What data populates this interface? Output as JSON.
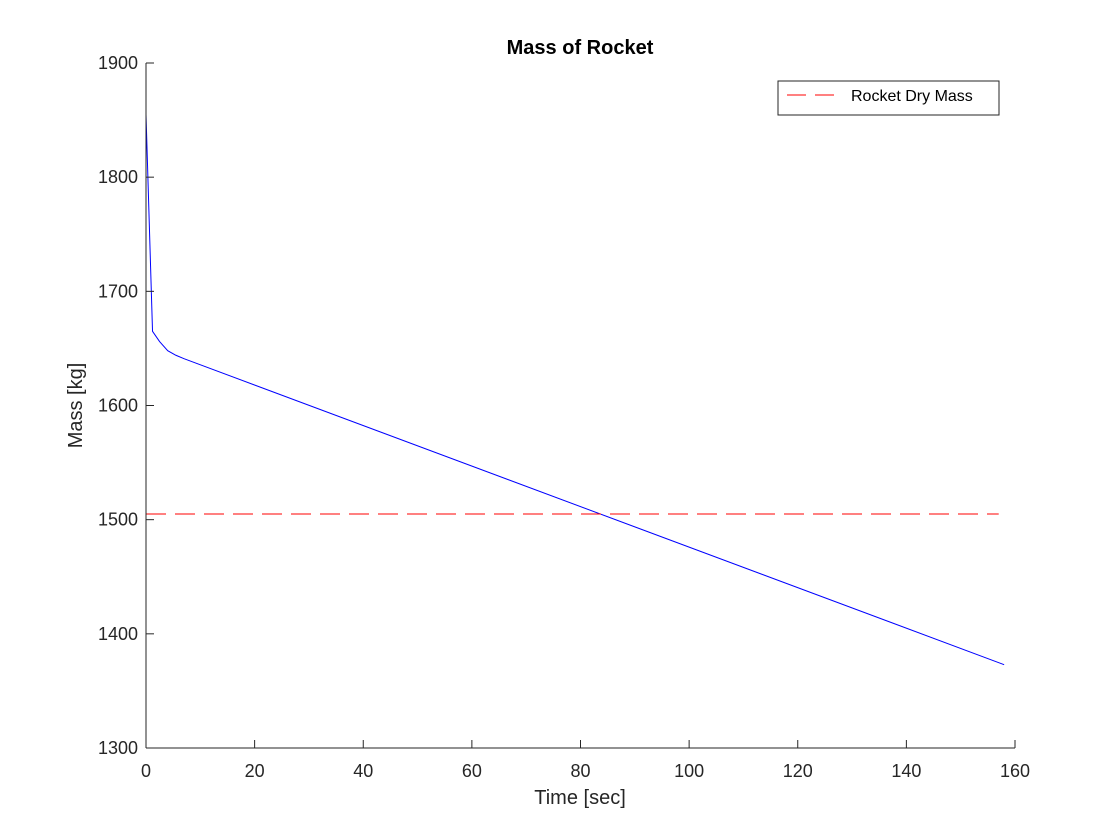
{
  "chart_data": {
    "type": "line",
    "title": "Mass of Rocket",
    "xlabel": "Time [sec]",
    "ylabel": "Mass [kg]",
    "xlim": [
      0,
      160
    ],
    "ylim": [
      1300,
      1900
    ],
    "xticks": [
      0,
      20,
      40,
      60,
      80,
      100,
      120,
      140,
      160
    ],
    "yticks": [
      1300,
      1400,
      1500,
      1600,
      1700,
      1800,
      1900
    ],
    "grid": false,
    "legend_position": "top-right",
    "series": [
      {
        "color": "#0000ff",
        "line_style": "solid",
        "x": [
          0,
          1.2,
          2.5,
          4,
          5.5,
          7,
          158
        ],
        "y": [
          1855,
          1665,
          1656,
          1648,
          1644,
          1641,
          1373
        ]
      },
      {
        "name": "Rocket Dry Mass",
        "color": "#ff0000",
        "line_style": "dashed",
        "x": [
          0,
          157
        ],
        "y": [
          1505,
          1505
        ]
      }
    ]
  }
}
